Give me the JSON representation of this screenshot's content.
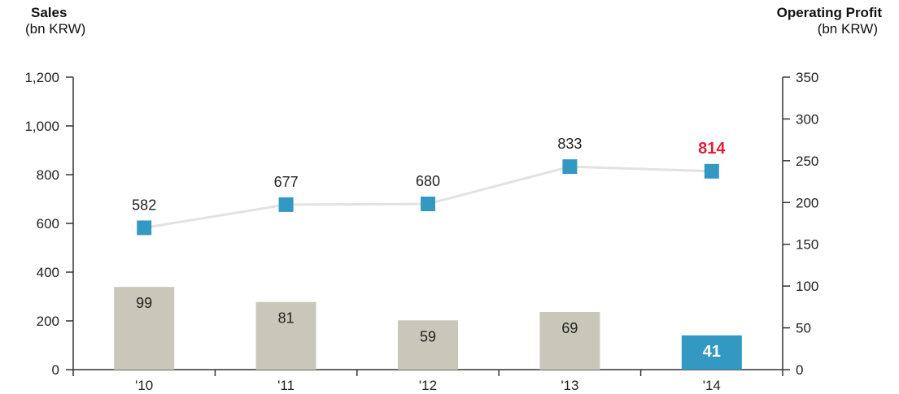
{
  "titles": {
    "left": "Sales",
    "left_unit": "(bn KRW)",
    "right": "Operating Profit",
    "right_unit": "(bn KRW)"
  },
  "colors": {
    "bar": "#c8c7b9",
    "bar_highlight": "#3399c2",
    "marker": "#3399c2",
    "line": "#e2e2e2",
    "highlight_label": "#e31e3c",
    "axis": "#333333"
  },
  "chart_data": {
    "type": "bar+line",
    "categories": [
      "'10",
      "'11",
      "'12",
      "'13",
      "'14"
    ],
    "left_axis": {
      "label": "Sales (bn KRW)",
      "ylim": [
        0,
        1200
      ],
      "ticks": [
        "0",
        "200",
        "400",
        "600",
        "800",
        "1,000",
        "1,200"
      ]
    },
    "right_axis": {
      "label": "Operating Profit (bn KRW)",
      "ylim": [
        0,
        350
      ],
      "ticks": [
        "0",
        "50",
        "100",
        "150",
        "200",
        "250",
        "300",
        "350"
      ]
    },
    "series": [
      {
        "type": "bar",
        "axis": "right",
        "values": [
          99,
          81,
          59,
          69,
          41
        ],
        "labels": [
          "99",
          "81",
          "59",
          "69",
          "41"
        ],
        "highlight_index": 4
      },
      {
        "type": "line",
        "axis": "left",
        "values": [
          582,
          677,
          680,
          833,
          814
        ],
        "labels": [
          "582",
          "677",
          "680",
          "833",
          "814"
        ],
        "highlight_index": 4
      }
    ],
    "grid": false
  }
}
